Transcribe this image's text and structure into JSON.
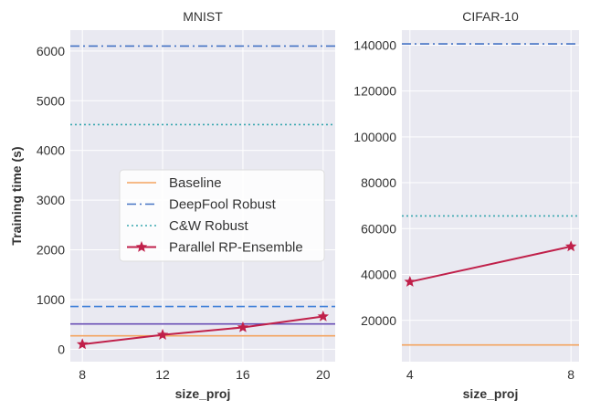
{
  "chart_data": [
    {
      "type": "line",
      "title": "MNIST",
      "xlabel": "size_proj",
      "ylabel": "Training time (s)",
      "xlim": [
        7.4,
        20.6
      ],
      "ylim": [
        -250,
        6420
      ],
      "xticks": [
        8,
        12,
        16,
        20
      ],
      "yticks": [
        0,
        1000,
        2000,
        3000,
        4000,
        5000,
        6000
      ],
      "hlines": [
        {
          "name": "Baseline",
          "y": 270,
          "color": "#f4a460",
          "style": "solid"
        },
        {
          "name": "DeepFool Robust",
          "y": 6100,
          "color": "#4472c4",
          "style": "dashdot"
        },
        {
          "name": "C&W Robust",
          "y": 4520,
          "color": "#3aa8b0",
          "style": "dotted"
        },
        {
          "name": "",
          "y": 860,
          "color": "#3b7dd8",
          "style": "dashed"
        },
        {
          "name": "",
          "y": 510,
          "color": "#6a4fb5",
          "style": "solid"
        }
      ],
      "series": [
        {
          "name": "Parallel RP-Ensemble",
          "color": "#c0204a",
          "marker": "star",
          "x": [
            8,
            12,
            16,
            20
          ],
          "values": [
            100,
            290,
            440,
            660
          ]
        }
      ]
    },
    {
      "type": "line",
      "title": "CIFAR-10",
      "xlabel": "size_proj",
      "ylabel": "",
      "xlim": [
        3.8,
        8.2
      ],
      "ylim": [
        2000,
        146500
      ],
      "xticks": [
        4,
        8
      ],
      "yticks": [
        20000,
        40000,
        60000,
        80000,
        100000,
        120000,
        140000
      ],
      "hlines": [
        {
          "name": "Baseline",
          "y": 9300,
          "color": "#f4a460",
          "style": "solid"
        },
        {
          "name": "DeepFool Robust",
          "y": 140500,
          "color": "#4472c4",
          "style": "dashdot"
        },
        {
          "name": "C&W Robust",
          "y": 65500,
          "color": "#3aa8b0",
          "style": "dotted"
        }
      ],
      "series": [
        {
          "name": "Parallel RP-Ensemble",
          "color": "#c0204a",
          "marker": "star",
          "x": [
            4,
            8
          ],
          "values": [
            36800,
            52200
          ]
        }
      ]
    }
  ],
  "legend": {
    "items": [
      {
        "label": "Baseline",
        "color": "#f4a460",
        "style": "solid",
        "marker": ""
      },
      {
        "label": "DeepFool Robust",
        "color": "#4472c4",
        "style": "dashdot",
        "marker": ""
      },
      {
        "label": "C&W Robust",
        "color": "#3aa8b0",
        "style": "dotted",
        "marker": ""
      },
      {
        "label": "Parallel RP-Ensemble",
        "color": "#c0204a",
        "style": "solid",
        "marker": "star"
      }
    ]
  },
  "colors": {
    "panel_bg": "#e9e9f1",
    "grid": "#ffffff",
    "text": "#333333"
  }
}
